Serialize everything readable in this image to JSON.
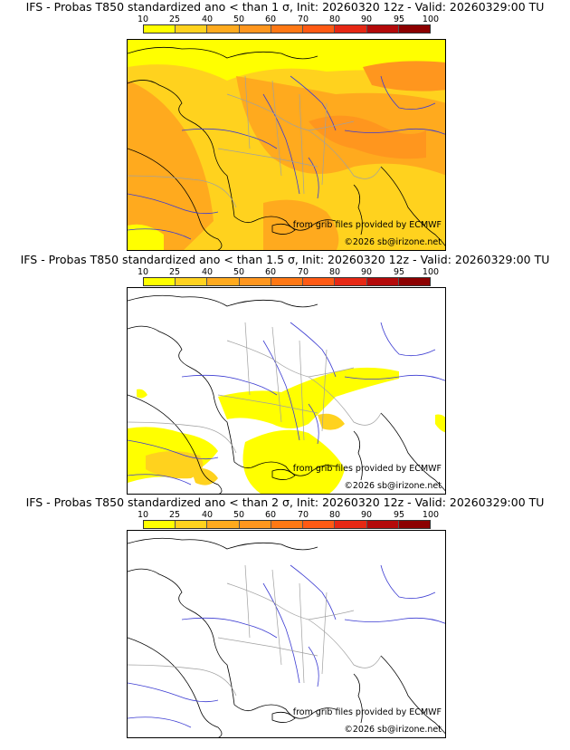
{
  "panels": [
    {
      "title": "IFS - Probas T850  standardized ano < than 1 σ, Init: 20260320 12z - Valid: 20260329:00 TU",
      "sigma": "1"
    },
    {
      "title": "IFS - Probas T850  standardized ano < than 1.5 σ, Init: 20260320 12z - Valid: 20260329:00 TU",
      "sigma": "1.5"
    },
    {
      "title": "IFS - Probas T850  standardized ano < than 2 σ, Init: 20260320 12z - Valid: 20260329:00 TU",
      "sigma": "2"
    }
  ],
  "colorbar": {
    "ticks": [
      "10",
      "25",
      "40",
      "50",
      "60",
      "70",
      "80",
      "90",
      "95",
      "100"
    ],
    "colors": [
      "#ffff00",
      "#ffd21e",
      "#ffaa1e",
      "#ff961e",
      "#ff7814",
      "#ff5a14",
      "#e62814",
      "#b40a0a",
      "#8c0000",
      "#640000"
    ]
  },
  "credits": {
    "source": "from grib files provided by ECMWF",
    "copyright": "©2026 sb@irizone.net"
  },
  "map_colors": {
    "coast": "#000000",
    "rivers": "#3c3cd2",
    "borders": "#a0a0a0",
    "prob_low": "#ffff00",
    "prob_mid": "#ffd21e",
    "prob_high": "#ffaa1e",
    "prob_top": "#ff961e"
  }
}
